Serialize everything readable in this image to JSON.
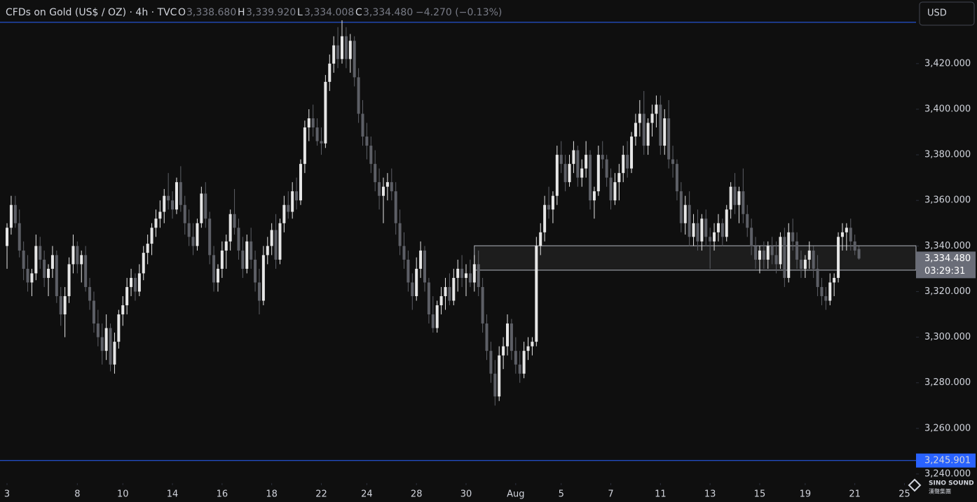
{
  "header": {
    "symbol": "CFDs on Gold (US$ / OZ) · 4h · TVC",
    "o_label": "O",
    "o": "3,338.680",
    "h_label": "H",
    "h": "3,339.920",
    "l_label": "L",
    "l": "3,334.008",
    "c_label": "C",
    "c": "3,334.480",
    "change": "−4.270 (−0.13%)"
  },
  "currency_button": "USD",
  "logo": {
    "name": "SINO SOUND",
    "subtitle": "漢聲集團"
  },
  "chart_data": {
    "type": "candlestick",
    "up_color": "#e6e6e6",
    "down_color": "#5d5f66",
    "background": "#0f0f0f",
    "xlim": [
      -1.7,
      219.8
    ],
    "ylim": [
      3236,
      3447.9
    ],
    "xticks": [
      {
        "value": 0,
        "label": "3"
      },
      {
        "value": 17,
        "label": "8"
      },
      {
        "value": 28,
        "label": "10"
      },
      {
        "value": 40,
        "label": "14"
      },
      {
        "value": 52,
        "label": "16"
      },
      {
        "value": 64,
        "label": "18"
      },
      {
        "value": 76,
        "label": "22"
      },
      {
        "value": 87,
        "label": "24"
      },
      {
        "value": 99,
        "label": "28"
      },
      {
        "value": 111,
        "label": "30"
      },
      {
        "value": 123,
        "label": "Aug"
      },
      {
        "value": 134,
        "label": "5"
      },
      {
        "value": 146,
        "label": "7"
      },
      {
        "value": 158,
        "label": "11"
      },
      {
        "value": 170,
        "label": "13"
      },
      {
        "value": 182,
        "label": "15"
      },
      {
        "value": 193,
        "label": "19"
      },
      {
        "value": 205,
        "label": "21"
      },
      {
        "value": 217,
        "label": "25"
      }
    ],
    "yticks": [
      {
        "value": 3240,
        "label": "3,240.000"
      },
      {
        "value": 3260,
        "label": "3,260.000"
      },
      {
        "value": 3280,
        "label": "3,280.000"
      },
      {
        "value": 3300,
        "label": "3,300.000"
      },
      {
        "value": 3320,
        "label": "3,320.000"
      },
      {
        "value": 3340,
        "label": "3,340.000"
      },
      {
        "value": 3360,
        "label": "3,360.000"
      },
      {
        "value": 3380,
        "label": "3,380.000"
      },
      {
        "value": 3400,
        "label": "3,400.000"
      },
      {
        "value": 3420,
        "label": "3,420.000"
      }
    ],
    "hlines": [
      {
        "value": 3438.1,
        "color": "#2962ff"
      },
      {
        "value": 3245.901,
        "label": "3,245.901",
        "color": "#2962ff"
      }
    ],
    "zone": {
      "from_index": 113,
      "top": 3340.1,
      "bottom": 3329.4
    },
    "last_price": {
      "value": 3334.48,
      "label": "3,334.480",
      "countdown": "03:29:31"
    },
    "candles": [
      [
        3340,
        3350,
        3330,
        3348
      ],
      [
        3348,
        3362,
        3345,
        3358
      ],
      [
        3358,
        3362,
        3348,
        3350
      ],
      [
        3350,
        3356,
        3335,
        3338
      ],
      [
        3338,
        3342,
        3325,
        3330
      ],
      [
        3330,
        3336,
        3320,
        3324
      ],
      [
        3324,
        3330,
        3318,
        3328
      ],
      [
        3328,
        3345,
        3325,
        3340
      ],
      [
        3340,
        3344,
        3330,
        3334
      ],
      [
        3334,
        3338,
        3322,
        3326
      ],
      [
        3326,
        3332,
        3318,
        3330
      ],
      [
        3330,
        3340,
        3326,
        3336
      ],
      [
        3336,
        3338,
        3315,
        3318
      ],
      [
        3318,
        3322,
        3305,
        3310
      ],
      [
        3310,
        3322,
        3300,
        3318
      ],
      [
        3318,
        3335,
        3315,
        3332
      ],
      [
        3332,
        3345,
        3328,
        3340
      ],
      [
        3340,
        3342,
        3328,
        3332
      ],
      [
        3332,
        3338,
        3324,
        3336
      ],
      [
        3336,
        3340,
        3320,
        3322
      ],
      [
        3322,
        3326,
        3312,
        3316
      ],
      [
        3316,
        3320,
        3302,
        3306
      ],
      [
        3306,
        3312,
        3296,
        3300
      ],
      [
        3300,
        3306,
        3288,
        3294
      ],
      [
        3294,
        3310,
        3290,
        3304
      ],
      [
        3304,
        3306,
        3285,
        3288
      ],
      [
        3288,
        3302,
        3284,
        3298
      ],
      [
        3298,
        3312,
        3295,
        3310
      ],
      [
        3310,
        3318,
        3305,
        3314
      ],
      [
        3314,
        3326,
        3310,
        3322
      ],
      [
        3322,
        3330,
        3318,
        3326
      ],
      [
        3326,
        3328,
        3316,
        3320
      ],
      [
        3320,
        3332,
        3318,
        3328
      ],
      [
        3328,
        3340,
        3325,
        3337
      ],
      [
        3337,
        3345,
        3332,
        3341
      ],
      [
        3341,
        3350,
        3336,
        3348
      ],
      [
        3348,
        3356,
        3344,
        3352
      ],
      [
        3352,
        3360,
        3348,
        3355
      ],
      [
        3355,
        3365,
        3350,
        3362
      ],
      [
        3362,
        3372,
        3356,
        3360
      ],
      [
        3360,
        3364,
        3352,
        3356
      ],
      [
        3356,
        3370,
        3354,
        3368
      ],
      [
        3368,
        3375,
        3355,
        3358
      ],
      [
        3358,
        3362,
        3345,
        3350
      ],
      [
        3350,
        3356,
        3340,
        3344
      ],
      [
        3344,
        3350,
        3336,
        3340
      ],
      [
        3340,
        3352,
        3338,
        3350
      ],
      [
        3350,
        3366,
        3348,
        3363
      ],
      [
        3363,
        3368,
        3348,
        3352
      ],
      [
        3352,
        3355,
        3332,
        3336
      ],
      [
        3336,
        3340,
        3320,
        3324
      ],
      [
        3324,
        3332,
        3320,
        3330
      ],
      [
        3330,
        3342,
        3326,
        3338
      ],
      [
        3338,
        3345,
        3330,
        3342
      ],
      [
        3342,
        3356,
        3338,
        3354
      ],
      [
        3354,
        3365,
        3345,
        3348
      ],
      [
        3348,
        3352,
        3334,
        3338
      ],
      [
        3338,
        3344,
        3326,
        3330
      ],
      [
        3330,
        3345,
        3328,
        3342
      ],
      [
        3342,
        3348,
        3330,
        3334
      ],
      [
        3334,
        3338,
        3320,
        3324
      ],
      [
        3324,
        3330,
        3310,
        3316
      ],
      [
        3316,
        3340,
        3314,
        3336
      ],
      [
        3336,
        3344,
        3332,
        3340
      ],
      [
        3340,
        3350,
        3336,
        3347
      ],
      [
        3347,
        3354,
        3330,
        3334
      ],
      [
        3334,
        3352,
        3332,
        3350
      ],
      [
        3350,
        3362,
        3346,
        3358
      ],
      [
        3358,
        3364,
        3352,
        3355
      ],
      [
        3355,
        3368,
        3352,
        3364
      ],
      [
        3364,
        3370,
        3356,
        3360
      ],
      [
        3360,
        3378,
        3358,
        3376
      ],
      [
        3376,
        3395,
        3372,
        3392
      ],
      [
        3392,
        3400,
        3386,
        3396
      ],
      [
        3396,
        3402,
        3388,
        3392
      ],
      [
        3392,
        3396,
        3384,
        3386
      ],
      [
        3386,
        3392,
        3380,
        3385
      ],
      [
        3385,
        3415,
        3383,
        3412
      ],
      [
        3412,
        3424,
        3408,
        3420
      ],
      [
        3420,
        3432,
        3416,
        3428
      ],
      [
        3428,
        3436,
        3418,
        3422
      ],
      [
        3422,
        3439,
        3420,
        3432
      ],
      [
        3432,
        3436,
        3418,
        3422
      ],
      [
        3422,
        3433,
        3416,
        3430
      ],
      [
        3430,
        3432,
        3410,
        3414
      ],
      [
        3414,
        3418,
        3394,
        3398
      ],
      [
        3398,
        3404,
        3384,
        3388
      ],
      [
        3388,
        3394,
        3378,
        3384
      ],
      [
        3384,
        3388,
        3372,
        3376
      ],
      [
        3376,
        3382,
        3364,
        3368
      ],
      [
        3368,
        3374,
        3356,
        3362
      ],
      [
        3362,
        3370,
        3350,
        3366
      ],
      [
        3366,
        3372,
        3360,
        3368
      ],
      [
        3368,
        3374,
        3360,
        3364
      ],
      [
        3364,
        3368,
        3345,
        3350
      ],
      [
        3350,
        3356,
        3336,
        3340
      ],
      [
        3340,
        3346,
        3330,
        3334
      ],
      [
        3334,
        3338,
        3320,
        3324
      ],
      [
        3324,
        3328,
        3312,
        3318
      ],
      [
        3318,
        3335,
        3316,
        3330
      ],
      [
        3330,
        3342,
        3326,
        3338
      ],
      [
        3338,
        3340,
        3320,
        3324
      ],
      [
        3324,
        3326,
        3306,
        3310
      ],
      [
        3310,
        3318,
        3302,
        3304
      ],
      [
        3304,
        3316,
        3302,
        3314
      ],
      [
        3314,
        3322,
        3310,
        3318
      ],
      [
        3318,
        3326,
        3312,
        3322
      ],
      [
        3322,
        3328,
        3314,
        3316
      ],
      [
        3316,
        3330,
        3314,
        3326
      ],
      [
        3326,
        3334,
        3320,
        3330
      ],
      [
        3330,
        3336,
        3322,
        3326
      ],
      [
        3326,
        3332,
        3318,
        3328
      ],
      [
        3328,
        3334,
        3322,
        3324
      ],
      [
        3324,
        3336,
        3320,
        3332
      ],
      [
        3332,
        3338,
        3318,
        3322
      ],
      [
        3322,
        3326,
        3302,
        3306
      ],
      [
        3306,
        3310,
        3290,
        3294
      ],
      [
        3294,
        3298,
        3280,
        3284
      ],
      [
        3284,
        3290,
        3270,
        3274
      ],
      [
        3274,
        3296,
        3272,
        3292
      ],
      [
        3292,
        3300,
        3286,
        3296
      ],
      [
        3296,
        3310,
        3292,
        3306
      ],
      [
        3306,
        3308,
        3290,
        3294
      ],
      [
        3294,
        3300,
        3284,
        3288
      ],
      [
        3288,
        3294,
        3280,
        3284
      ],
      [
        3284,
        3298,
        3282,
        3294
      ],
      [
        3294,
        3300,
        3290,
        3296
      ],
      [
        3296,
        3300,
        3292,
        3298
      ],
      [
        3298,
        3344,
        3296,
        3340
      ],
      [
        3340,
        3350,
        3336,
        3346
      ],
      [
        3346,
        3362,
        3342,
        3358
      ],
      [
        3358,
        3366,
        3352,
        3356
      ],
      [
        3356,
        3364,
        3350,
        3362
      ],
      [
        3362,
        3384,
        3358,
        3380
      ],
      [
        3380,
        3386,
        3372,
        3376
      ],
      [
        3376,
        3380,
        3364,
        3368
      ],
      [
        3368,
        3380,
        3366,
        3376
      ],
      [
        3376,
        3386,
        3372,
        3382
      ],
      [
        3382,
        3384,
        3366,
        3370
      ],
      [
        3370,
        3378,
        3366,
        3374
      ],
      [
        3374,
        3386,
        3370,
        3380
      ],
      [
        3380,
        3382,
        3356,
        3360
      ],
      [
        3360,
        3366,
        3352,
        3364
      ],
      [
        3364,
        3384,
        3362,
        3380
      ],
      [
        3380,
        3386,
        3374,
        3378
      ],
      [
        3378,
        3380,
        3366,
        3370
      ],
      [
        3370,
        3374,
        3356,
        3360
      ],
      [
        3360,
        3372,
        3358,
        3368
      ],
      [
        3368,
        3376,
        3360,
        3372
      ],
      [
        3372,
        3384,
        3368,
        3380
      ],
      [
        3380,
        3386,
        3370,
        3374
      ],
      [
        3374,
        3390,
        3372,
        3388
      ],
      [
        3388,
        3398,
        3384,
        3394
      ],
      [
        3394,
        3404,
        3388,
        3398
      ],
      [
        3398,
        3408,
        3380,
        3384
      ],
      [
        3384,
        3396,
        3380,
        3394
      ],
      [
        3394,
        3402,
        3388,
        3398
      ],
      [
        3398,
        3406,
        3392,
        3402
      ],
      [
        3402,
        3406,
        3380,
        3384
      ],
      [
        3384,
        3400,
        3380,
        3396
      ],
      [
        3396,
        3404,
        3374,
        3378
      ],
      [
        3378,
        3384,
        3370,
        3376
      ],
      [
        3376,
        3378,
        3360,
        3364
      ],
      [
        3364,
        3368,
        3346,
        3350
      ],
      [
        3350,
        3362,
        3345,
        3358
      ],
      [
        3358,
        3364,
        3340,
        3344
      ],
      [
        3344,
        3354,
        3340,
        3350
      ],
      [
        3350,
        3356,
        3338,
        3342
      ],
      [
        3342,
        3354,
        3338,
        3352
      ],
      [
        3352,
        3356,
        3340,
        3344
      ],
      [
        3344,
        3348,
        3330,
        3342
      ],
      [
        3342,
        3350,
        3338,
        3346
      ],
      [
        3346,
        3354,
        3342,
        3350
      ],
      [
        3350,
        3352,
        3340,
        3344
      ],
      [
        3344,
        3358,
        3342,
        3356
      ],
      [
        3356,
        3368,
        3352,
        3366
      ],
      [
        3366,
        3372,
        3354,
        3358
      ],
      [
        3358,
        3366,
        3350,
        3364
      ],
      [
        3364,
        3374,
        3350,
        3354
      ],
      [
        3354,
        3358,
        3344,
        3348
      ],
      [
        3348,
        3352,
        3336,
        3340
      ],
      [
        3340,
        3344,
        3330,
        3334
      ],
      [
        3334,
        3340,
        3328,
        3338
      ],
      [
        3338,
        3342,
        3330,
        3334
      ],
      [
        3334,
        3342,
        3330,
        3340
      ],
      [
        3340,
        3344,
        3332,
        3336
      ],
      [
        3336,
        3342,
        3328,
        3332
      ],
      [
        3332,
        3346,
        3330,
        3344
      ],
      [
        3344,
        3348,
        3322,
        3326
      ],
      [
        3326,
        3350,
        3324,
        3346
      ],
      [
        3346,
        3352,
        3338,
        3342
      ],
      [
        3342,
        3346,
        3330,
        3334
      ],
      [
        3334,
        3338,
        3326,
        3330
      ],
      [
        3330,
        3336,
        3326,
        3334
      ],
      [
        3334,
        3342,
        3330,
        3338
      ],
      [
        3338,
        3340,
        3326,
        3330
      ],
      [
        3330,
        3336,
        3318,
        3322
      ],
      [
        3322,
        3326,
        3314,
        3318
      ],
      [
        3318,
        3322,
        3312,
        3316
      ],
      [
        3316,
        3328,
        3314,
        3324
      ],
      [
        3324,
        3328,
        3318,
        3326
      ],
      [
        3326,
        3346,
        3324,
        3344
      ],
      [
        3344,
        3350,
        3338,
        3346
      ],
      [
        3346,
        3350,
        3338,
        3348
      ],
      [
        3348,
        3352,
        3338,
        3342
      ],
      [
        3342,
        3345,
        3336,
        3338
      ],
      [
        3338.68,
        3339.92,
        3334.008,
        3334.48
      ]
    ]
  }
}
